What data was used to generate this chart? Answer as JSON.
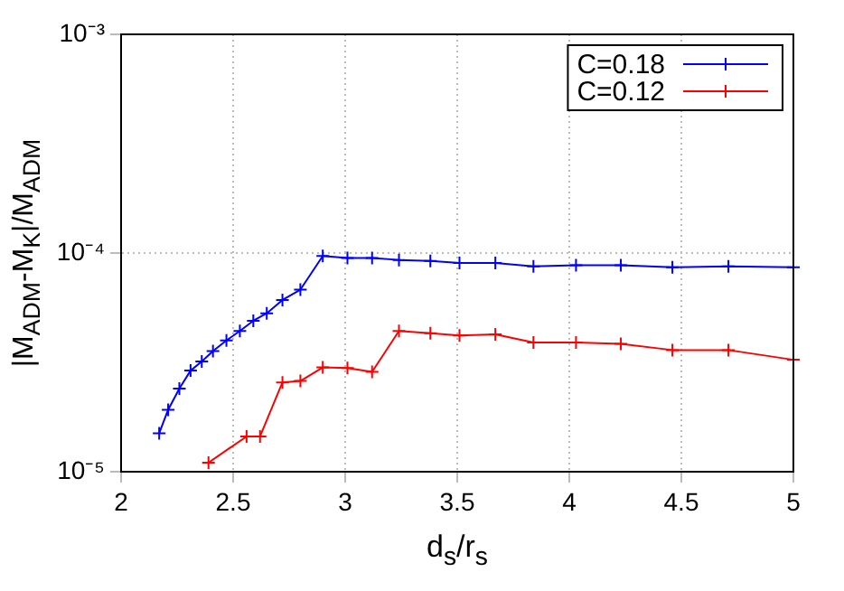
{
  "chart_data": {
    "type": "line",
    "xlabel": "d$_{s}$/r$_{s}$",
    "ylabel": "|M$_{ADM}$-M$_{K}$|/M$_{ADM}$",
    "xlim": [
      2,
      5
    ],
    "xticks": [
      2,
      2.5,
      3,
      3.5,
      4,
      4.5,
      5
    ],
    "ylim": [
      1e-05,
      0.001
    ],
    "yticks": [
      {
        "value": 1e-05,
        "label": "10⁻⁵"
      },
      {
        "value": 0.0001,
        "label": "10⁻⁴"
      },
      {
        "value": 0.001,
        "label": "10⁻³"
      }
    ],
    "log": "y",
    "grid": true,
    "legend": "top right",
    "marker": "cross",
    "line_style": "solid",
    "series": [
      {
        "name": "C=0.18",
        "color": "#0000ff",
        "x": [
          2.17,
          2.21,
          2.26,
          2.31,
          2.36,
          2.41,
          2.47,
          2.53,
          2.59,
          2.65,
          2.72,
          2.8,
          2.9,
          3.01,
          3.12,
          3.24,
          3.38,
          3.51,
          3.67,
          3.84,
          4.03,
          4.23,
          4.46,
          4.71,
          5
        ],
        "values": [
          1.5e-05,
          1.92e-05,
          2.4e-05,
          2.9e-05,
          3.19e-05,
          3.56e-05,
          3.98e-05,
          4.4e-05,
          4.9e-05,
          5.3e-05,
          6.1e-05,
          6.8e-05,
          9.7e-05,
          9.5e-05,
          9.5e-05,
          9.3e-05,
          9.2e-05,
          9e-05,
          9e-05,
          8.7e-05,
          8.8e-05,
          8.8e-05,
          8.6e-05,
          8.7e-05,
          8.6e-05
        ]
      },
      {
        "name": "C=0.12",
        "color": "#ff0000",
        "x": [
          2.39,
          2.56,
          2.62,
          2.72,
          2.8,
          2.9,
          3.01,
          3.12,
          3.24,
          3.38,
          3.51,
          3.67,
          3.84,
          4.03,
          4.23,
          4.46,
          4.71,
          5
        ],
        "values": [
          1.1e-05,
          1.45e-05,
          1.45e-05,
          2.56e-05,
          2.6e-05,
          3e-05,
          2.98e-05,
          2.86e-05,
          4.4e-05,
          4.3e-05,
          4.2e-05,
          4.25e-05,
          3.9e-05,
          3.9e-05,
          3.84e-05,
          3.6e-05,
          3.6e-05,
          3.25e-05
        ]
      }
    ]
  }
}
